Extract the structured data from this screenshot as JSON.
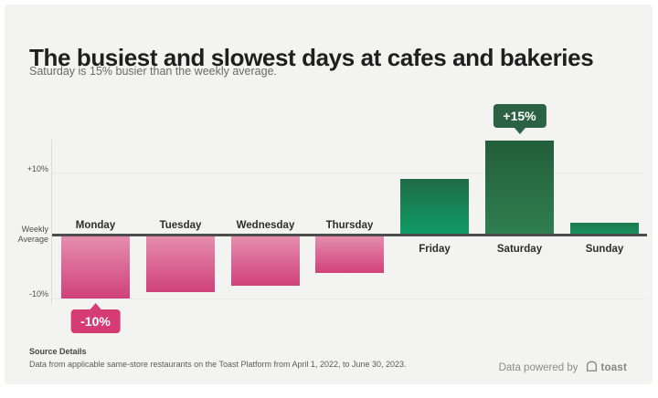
{
  "header": {
    "title": "The busiest and slowest days at cafes and bakeries",
    "subtitle": "Saturday is 15% busier than the weekly average."
  },
  "chart_data": {
    "type": "bar",
    "title": "The busiest and slowest days at cafes and bakeries",
    "categories": [
      "Monday",
      "Tuesday",
      "Wednesday",
      "Thursday",
      "Friday",
      "Saturday",
      "Sunday"
    ],
    "values": [
      -10,
      -9,
      -8,
      -6,
      9,
      15,
      2
    ],
    "unit": "percent vs weekly average",
    "xlabel": "",
    "ylabel": "Weekly Average",
    "ylim": [
      -12,
      17
    ],
    "grid": "minimal",
    "legend": "none",
    "yticks": [
      {
        "value": 10,
        "label": "+10%"
      },
      {
        "value": -10,
        "label": "-10%"
      }
    ],
    "zero_label_lines": [
      "Weekly",
      "Average"
    ],
    "bar_gradients": [
      [
        "#e58fae",
        "#d0417a"
      ],
      [
        "#e58fae",
        "#d0417a"
      ],
      [
        "#e58fae",
        "#d0417a"
      ],
      [
        "#e58fae",
        "#d0417a"
      ],
      [
        "#1f6b45",
        "#0f9d67"
      ],
      [
        "#235e3b",
        "#2f7f50"
      ],
      [
        "#1f7a4d",
        "#159362"
      ]
    ],
    "annotations": [
      {
        "category": "Monday",
        "label": "-10%",
        "bg": "#d63c74",
        "placement": "below"
      },
      {
        "category": "Saturday",
        "label": "+15%",
        "bg": "#2b6243",
        "placement": "above"
      }
    ]
  },
  "footer": {
    "source_label": "Source Details",
    "source_text": "Data from applicable same-store restaurants on the Toast Platform from April 1, 2022, to June 30, 2023.",
    "powered_by": "Data powered by",
    "brand": "toast"
  },
  "colors": {
    "card_bg": "#f3f3f2",
    "frame": "#ffffff",
    "zero_line": "#4d4d4d",
    "title": "#1f1f1f",
    "subtitle": "#6a6a6a",
    "negative_bar_top": "#e58fae",
    "negative_bar_bottom": "#d0417a",
    "positive_bar_dark": "#235e3b",
    "positive_bar_bright": "#0f9d67",
    "badge_negative": "#d63c74",
    "badge_positive": "#2b6243"
  }
}
